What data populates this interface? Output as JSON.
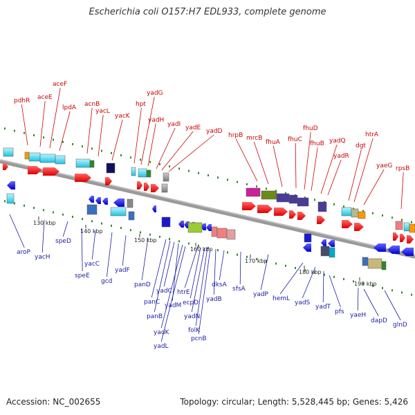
{
  "title": "Escherichia coli O157:H7 EDL933, complete genome",
  "accession_text": "Accession: NC_002655",
  "summary_text": "Topology: circular; Length: 5,528,445 bp; Genes: 5,426",
  "colors": {
    "top_strand_gene": "#ff0000",
    "bottom_strand_gene": "#0000ee",
    "top_label": "#cc0000",
    "bottom_label": "#1a1aa6",
    "backbone": "#888888",
    "tick": "#2a8a2a"
  },
  "scale_ticks": [
    "130 kbp",
    "140 kbp",
    "150 kbp",
    "160 kbp",
    "170 kbp",
    "180 kbp",
    "190 kbp"
  ],
  "top_genes": [
    "pdhR",
    "aceE",
    "aceF",
    "lpdA",
    "acnB",
    "yacL",
    "yacK",
    "hpt",
    "yadG",
    "yadH",
    "yadI",
    "yadE",
    "yadD",
    "hrpB",
    "mrcB",
    "fhuA",
    "fhuC",
    "fhuD",
    "fhuB",
    "yadQ",
    "yadR",
    "dgt",
    "htrA",
    "yaeG",
    "rpsB"
  ],
  "bottom_genes": [
    "aroP",
    "yacH",
    "speD",
    "speE",
    "yacC",
    "gcd",
    "yadF",
    "panD",
    "panC",
    "panB",
    "yadC",
    "yadM",
    "yadK",
    "yadL",
    "htrE",
    "ecpD",
    "yadN",
    "folK",
    "pcnB",
    "yadB",
    "dksA",
    "sfsA",
    "yadP",
    "hemL",
    "yadS",
    "yadT",
    "pfs",
    "yaeH",
    "dapD",
    "glnD"
  ]
}
